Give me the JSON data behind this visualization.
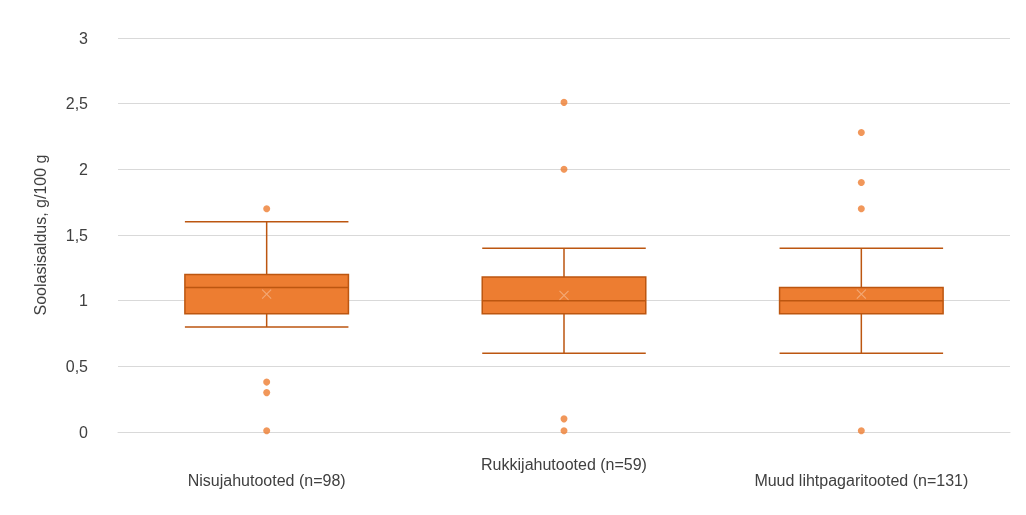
{
  "chart_data": {
    "type": "box",
    "ylabel": "Soolasisaldus, g/100 g",
    "categories": [
      "Nisujahutooted (n=98)",
      "Rukkijahutooted (n=59)",
      "Muud lihtpagaritooted (n=131)"
    ],
    "boxes": [
      {
        "low": 0.8,
        "q1": 0.9,
        "median": 1.1,
        "q3": 1.2,
        "high": 1.6,
        "mean": 1.05,
        "outliers": [
          1.7,
          0.38,
          0.3,
          0.01
        ]
      },
      {
        "low": 0.6,
        "q1": 0.9,
        "median": 1.0,
        "q3": 1.18,
        "high": 1.4,
        "mean": 1.04,
        "outliers": [
          2.51,
          2.0,
          0.1,
          0.01
        ]
      },
      {
        "low": 0.6,
        "q1": 0.9,
        "median": 1.0,
        "q3": 1.1,
        "high": 1.4,
        "mean": 1.05,
        "outliers": [
          2.28,
          1.9,
          1.7,
          0.01
        ]
      }
    ],
    "color": "#ed7d31",
    "ylim": [
      0,
      3
    ],
    "yticks": [
      0,
      {
        "value": 0.5,
        "label": "0,5"
      },
      1,
      {
        "value": 1.5,
        "label": "1,5"
      },
      2,
      {
        "value": 2.5,
        "label": "2,5"
      },
      3
    ],
    "grid": "y"
  }
}
